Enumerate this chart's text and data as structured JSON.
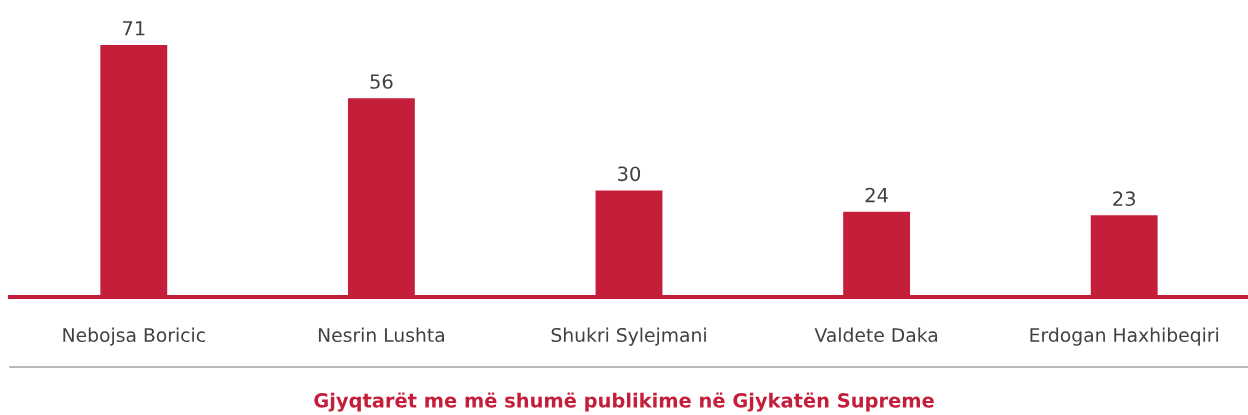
{
  "chart_data": {
    "type": "bar",
    "title": "Gjyqtarët me më shumë publikime në Gjykatën Supreme",
    "categories": [
      "Nebojsa Boricic",
      "Nesrin Lushta",
      "Shukri Sylejmani",
      "Valdete Daka",
      "Erdogan Haxhibeqiri"
    ],
    "values": [
      71,
      56,
      30,
      24,
      23
    ],
    "color": "#c41e3a",
    "data_labels": true,
    "grid": false,
    "legend": false
  }
}
